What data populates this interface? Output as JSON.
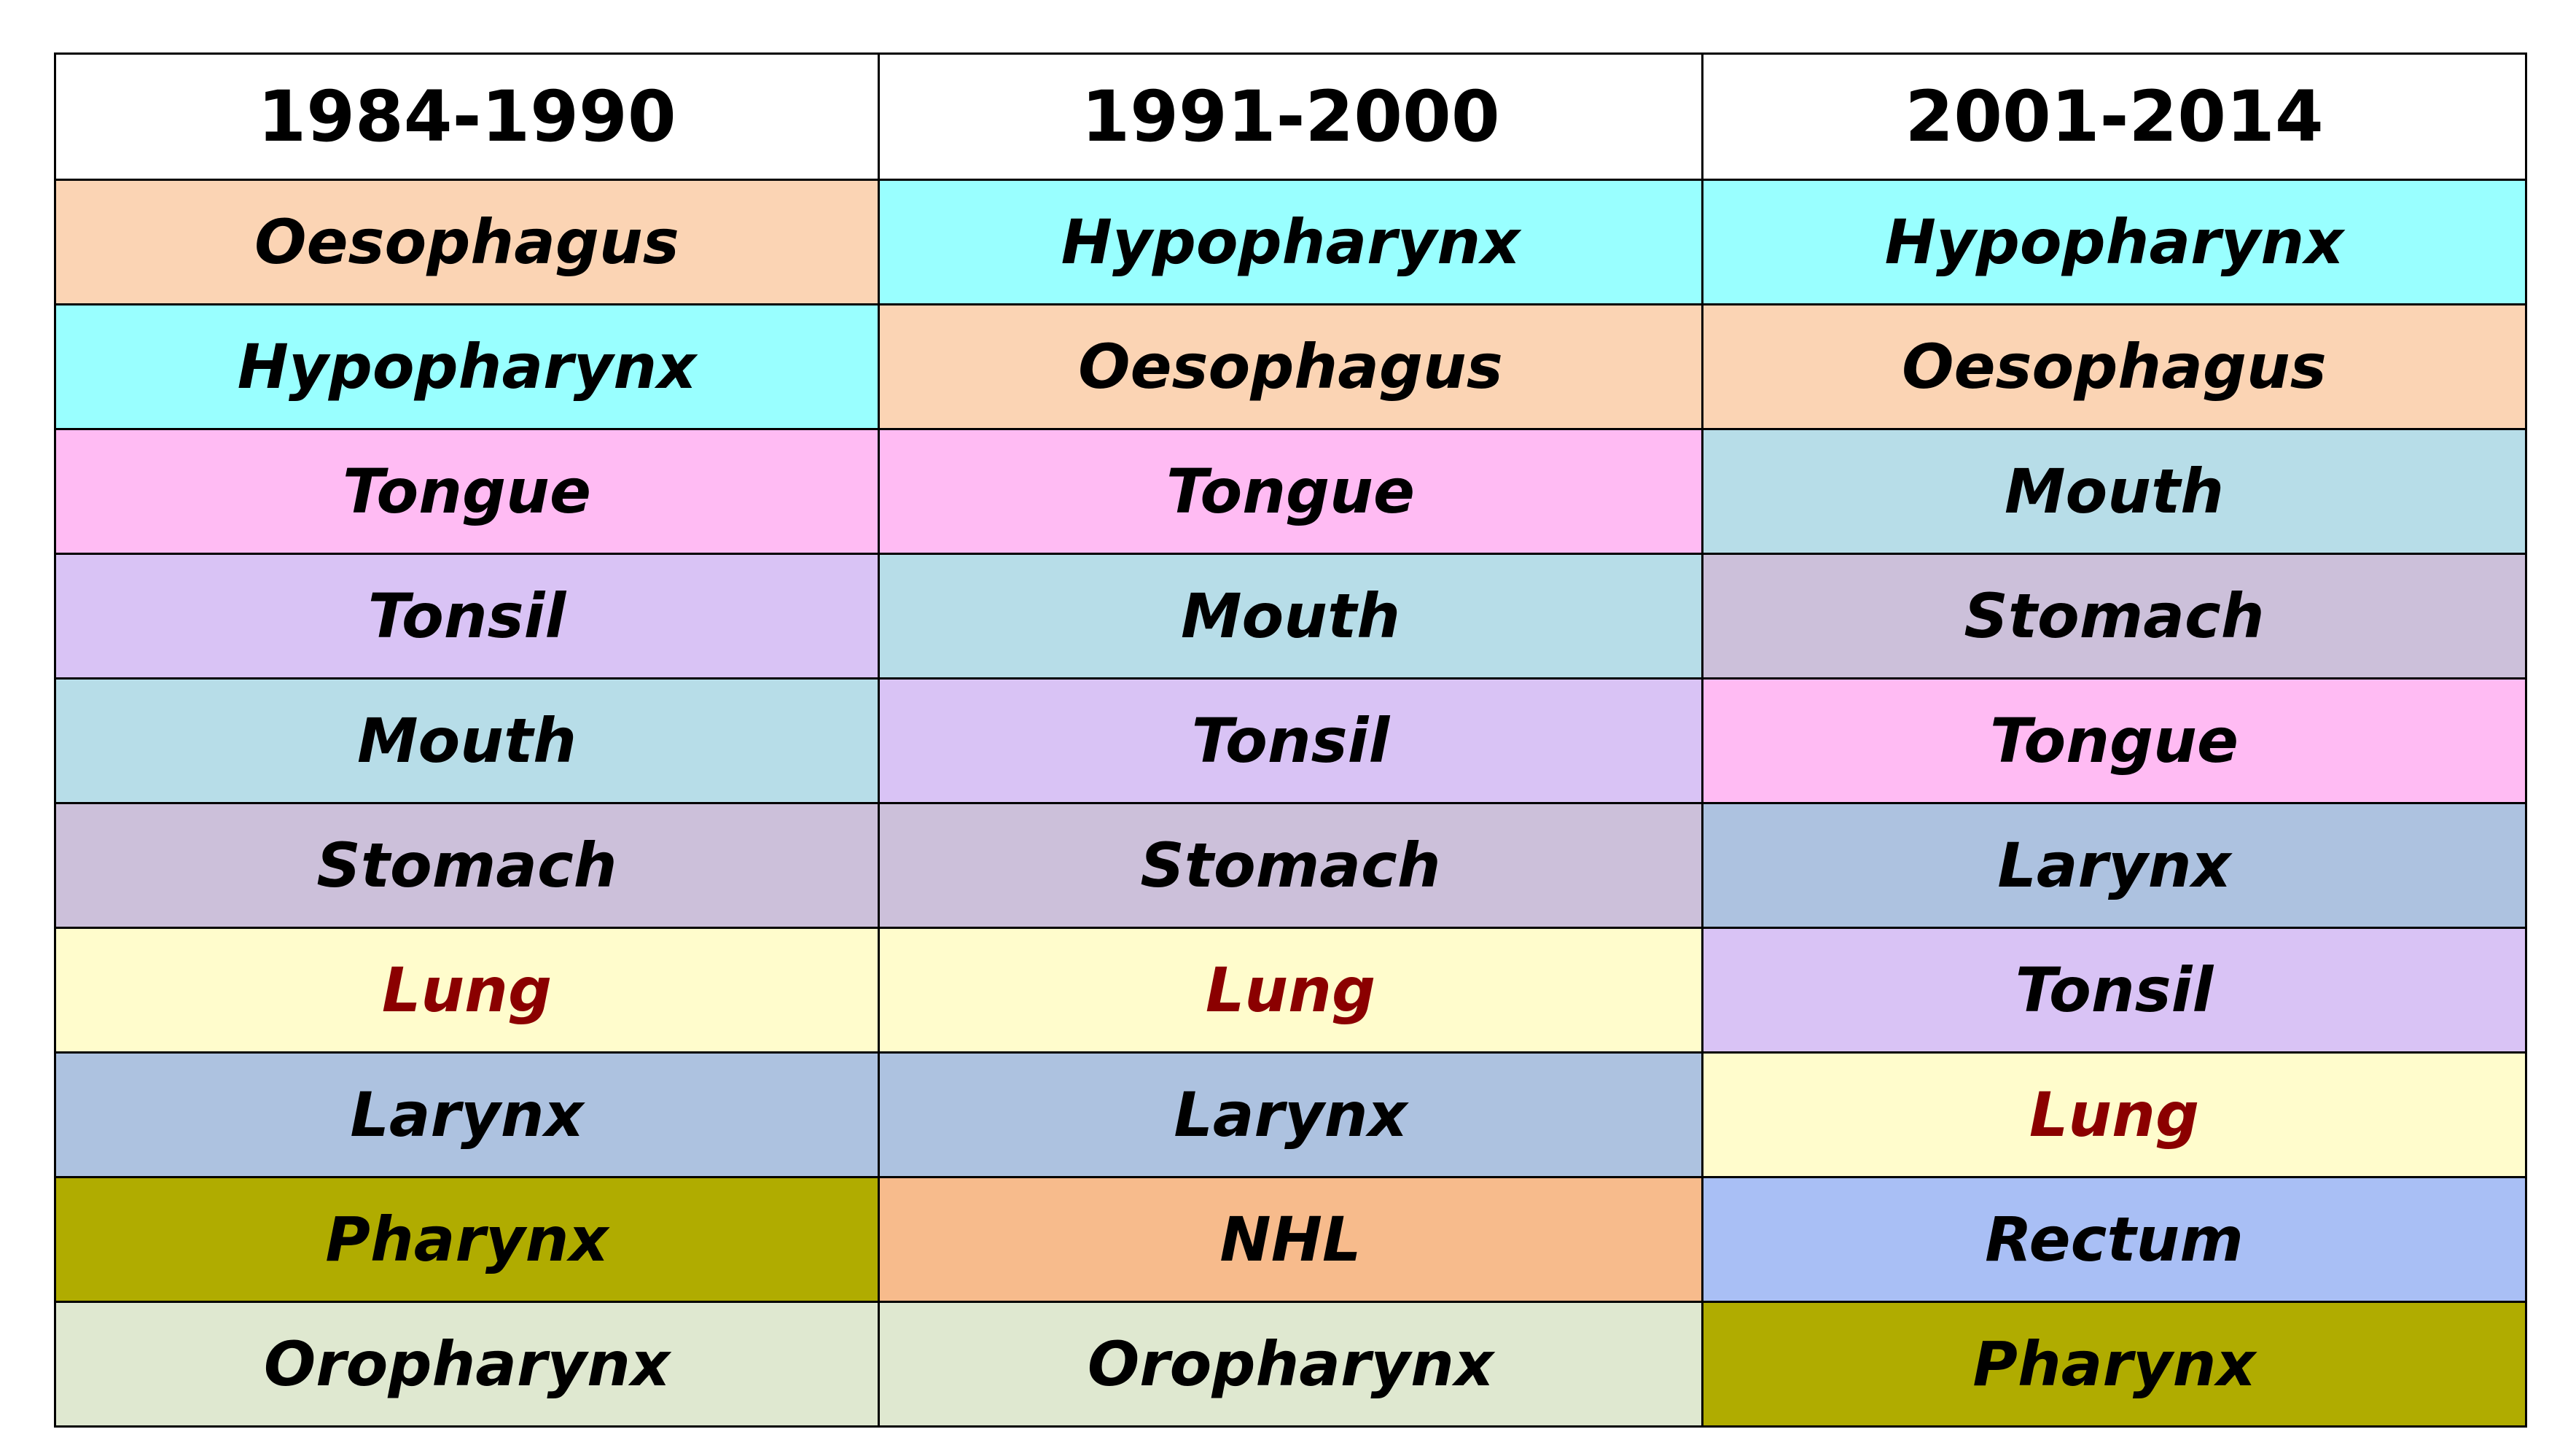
{
  "chart_data": {
    "type": "table",
    "columns": [
      "1984-1990",
      "1991-2000",
      "2001-2014"
    ],
    "rows": [
      [
        "Oesophagus",
        "Hypopharynx",
        "Hypopharynx"
      ],
      [
        "Hypopharynx",
        "Oesophagus",
        "Oesophagus"
      ],
      [
        "Tongue",
        "Tongue",
        "Mouth"
      ],
      [
        "Tonsil",
        "Mouth",
        "Stomach"
      ],
      [
        "Mouth",
        "Tonsil",
        "Tongue"
      ],
      [
        "Stomach",
        "Stomach",
        "Larynx"
      ],
      [
        "Lung",
        "Lung",
        "Tonsil"
      ],
      [
        "Larynx",
        "Larynx",
        "Lung"
      ],
      [
        "Pharynx",
        "NHL",
        "Rectum"
      ],
      [
        "Oropharynx",
        "Oropharynx",
        "Pharynx"
      ]
    ]
  },
  "colors": {
    "Oesophagus": "#FBD4B4",
    "Hypopharynx": "#99FFFF",
    "Tongue": "#FFBBF3",
    "Tonsil": "#D9C3F5",
    "Mouth": "#B7DDE8",
    "Stomach": "#CCC0DA",
    "Lung": "#FFFCCC",
    "Larynx": "#ADC2E0",
    "Pharynx": "#B0AC00",
    "Oropharynx": "#DFE8D0",
    "NHL": "#F7BB8C",
    "Rectum": "#A9BFF5"
  },
  "text_colors": {
    "default": "#000000",
    "Lung": "#8B0000"
  }
}
